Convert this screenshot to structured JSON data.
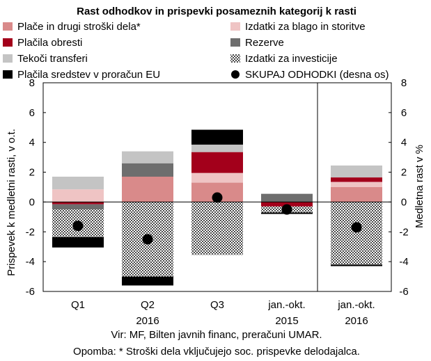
{
  "chart_data": {
    "type": "bar",
    "stacked": true,
    "title": "Rast odhodkov in prispevki posameznih kategorij k rasti",
    "ylabel": "Prispevek k medletni rasti, v o.t.",
    "ylabel_right": "Medletna rast v %",
    "ylim": [
      -6,
      8
    ],
    "ylim_right": [
      -6,
      8
    ],
    "yticks": [
      8,
      6,
      4,
      2,
      0,
      -2,
      -4,
      -6
    ],
    "categories": [
      {
        "label": "Q1",
        "sublabel": ""
      },
      {
        "label": "Q2",
        "sublabel": "2016"
      },
      {
        "label": "Q3",
        "sublabel": ""
      },
      {
        "label": "jan.-okt.",
        "sublabel": "2015"
      },
      {
        "label": "jan.-okt.",
        "sublabel": "2016"
      }
    ],
    "series": [
      {
        "name": "Plače in drugi stroški dela*",
        "color": "#d98a8a",
        "pattern": "solid",
        "values": [
          0.0,
          1.7,
          1.3,
          0.0,
          1.0
        ]
      },
      {
        "name": "Izdatki za blago in storitve",
        "color": "#efc4c4",
        "pattern": "solid",
        "values": [
          0.85,
          0.0,
          0.65,
          0.0,
          0.35
        ]
      },
      {
        "name": "Plačila obresti",
        "color": "#a3001b",
        "pattern": "solid",
        "values": [
          -0.15,
          0.0,
          1.4,
          -0.3,
          0.3
        ]
      },
      {
        "name": "Rezerve",
        "color": "#6e6e6e",
        "pattern": "solid",
        "values": [
          -0.35,
          0.9,
          0.0,
          0.55,
          0.0
        ]
      },
      {
        "name": "Tekoči transferi",
        "color": "#c4c4c4",
        "pattern": "solid",
        "values": [
          0.85,
          0.8,
          0.5,
          0.0,
          0.8
        ]
      },
      {
        "name": "Izdatki za investicije",
        "color": "#7a7a7a",
        "pattern": "checker",
        "values": [
          -1.85,
          -5.0,
          -3.55,
          -0.4,
          -4.2
        ]
      },
      {
        "name": "Plačila sredstev v proračun EU",
        "color": "#000000",
        "pattern": "solid",
        "values": [
          -0.7,
          -0.6,
          1.0,
          -0.1,
          -0.1
        ]
      }
    ],
    "total": {
      "name": "SKUPAJ ODHODKI (desna os)",
      "axis": "right",
      "color": "#000000",
      "values": [
        -1.6,
        -2.5,
        0.3,
        -0.5,
        -1.7
      ]
    },
    "separator_after_category": 3,
    "grid": false,
    "legend_position": "top"
  },
  "footer": {
    "source": "Vir: MF, Bilten javnih financ, preračuni UMAR.",
    "note": "Opomba: * Stroški dela vključujejo soc. prispevke delodajalca."
  }
}
